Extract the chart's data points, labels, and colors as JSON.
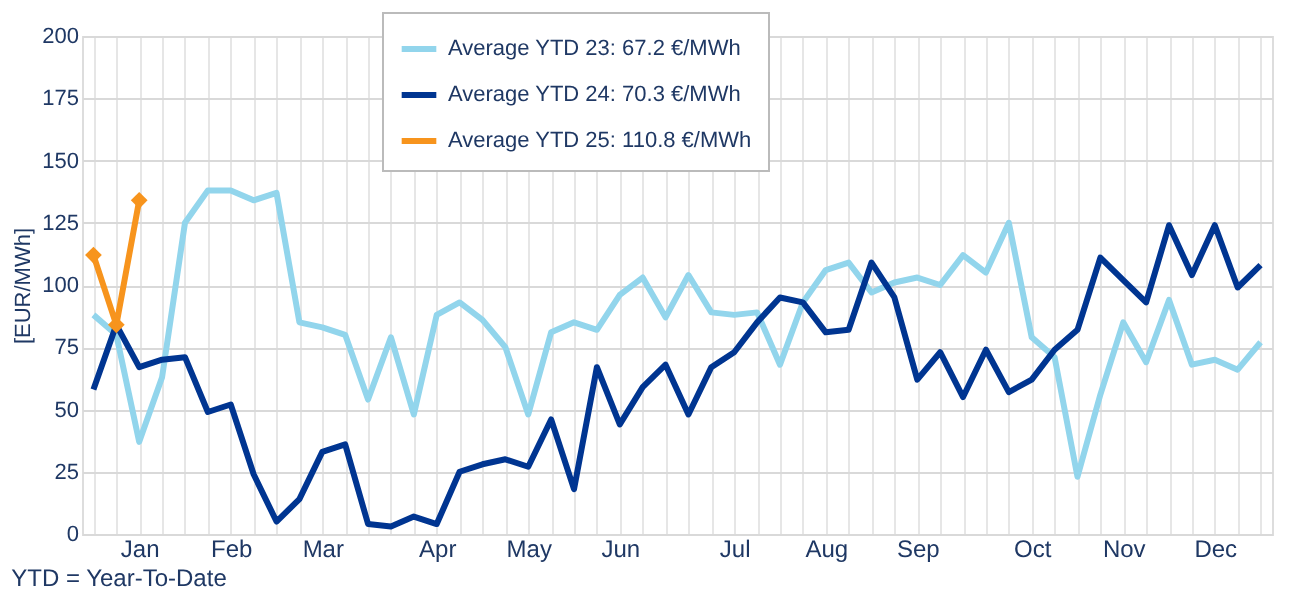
{
  "chart_data": {
    "type": "line",
    "ylabel": "[EUR/MWh]",
    "annotations": [
      "YTD = Year-To-Date"
    ],
    "categories": [
      null,
      null,
      "Jan",
      null,
      null,
      null,
      "Feb",
      null,
      null,
      null,
      "Mar",
      null,
      null,
      null,
      null,
      "Apr",
      null,
      null,
      null,
      "May",
      null,
      null,
      null,
      "Jun",
      null,
      null,
      null,
      null,
      "Jul",
      null,
      null,
      null,
      "Aug",
      null,
      null,
      null,
      "Sep",
      null,
      null,
      null,
      null,
      "Oct",
      null,
      null,
      null,
      "Nov",
      null,
      null,
      null,
      "Dec",
      null,
      null
    ],
    "series": [
      {
        "name": "Average YTD 23: 67.2 €/MWh",
        "color": "#92d5ec",
        "marker": "none",
        "values": [
          88,
          80,
          37,
          63,
          125,
          138,
          138,
          134,
          137,
          85,
          83,
          80,
          54,
          79,
          48,
          88,
          93,
          86,
          75,
          48,
          81,
          85,
          82,
          96,
          103,
          87,
          104,
          89,
          88,
          89,
          68,
          93,
          106,
          109,
          97,
          101,
          103,
          100,
          112,
          105,
          125,
          79,
          71,
          23,
          56,
          85,
          69,
          94,
          68,
          70,
          66,
          77
        ]
      },
      {
        "name": "Average YTD 24: 70.3 €/MWh",
        "color": "#003591",
        "marker": "none",
        "values": [
          58,
          84,
          67,
          70,
          71,
          49,
          52,
          24,
          5,
          14,
          33,
          36,
          4,
          3,
          7,
          4,
          25,
          28,
          30,
          27,
          46,
          18,
          67,
          44,
          59,
          68,
          48,
          67,
          73,
          85,
          95,
          93,
          81,
          82,
          109,
          95,
          62,
          73,
          55,
          74,
          57,
          62,
          74,
          82,
          111,
          102,
          93,
          124,
          104,
          124,
          99,
          108
        ]
      },
      {
        "name": "Average YTD 25: 110.8 €/MWh",
        "color": "#f7941d",
        "marker": "diamond",
        "values": [
          112,
          84,
          134,
          null,
          null,
          null,
          null,
          null,
          null,
          null,
          null,
          null,
          null,
          null,
          null,
          null,
          null,
          null,
          null,
          null,
          null,
          null,
          null,
          null,
          null,
          null,
          null,
          null,
          null,
          null,
          null,
          null,
          null,
          null,
          null,
          null,
          null,
          null,
          null,
          null,
          null,
          null,
          null,
          null,
          null,
          null,
          null,
          null,
          null,
          null,
          null,
          null
        ]
      }
    ],
    "ylim": [
      0,
      200
    ],
    "yticks": [
      0,
      25,
      50,
      75,
      100,
      125,
      150,
      175,
      200
    ],
    "grid": true,
    "legend": "top",
    "line_style": "solid"
  }
}
